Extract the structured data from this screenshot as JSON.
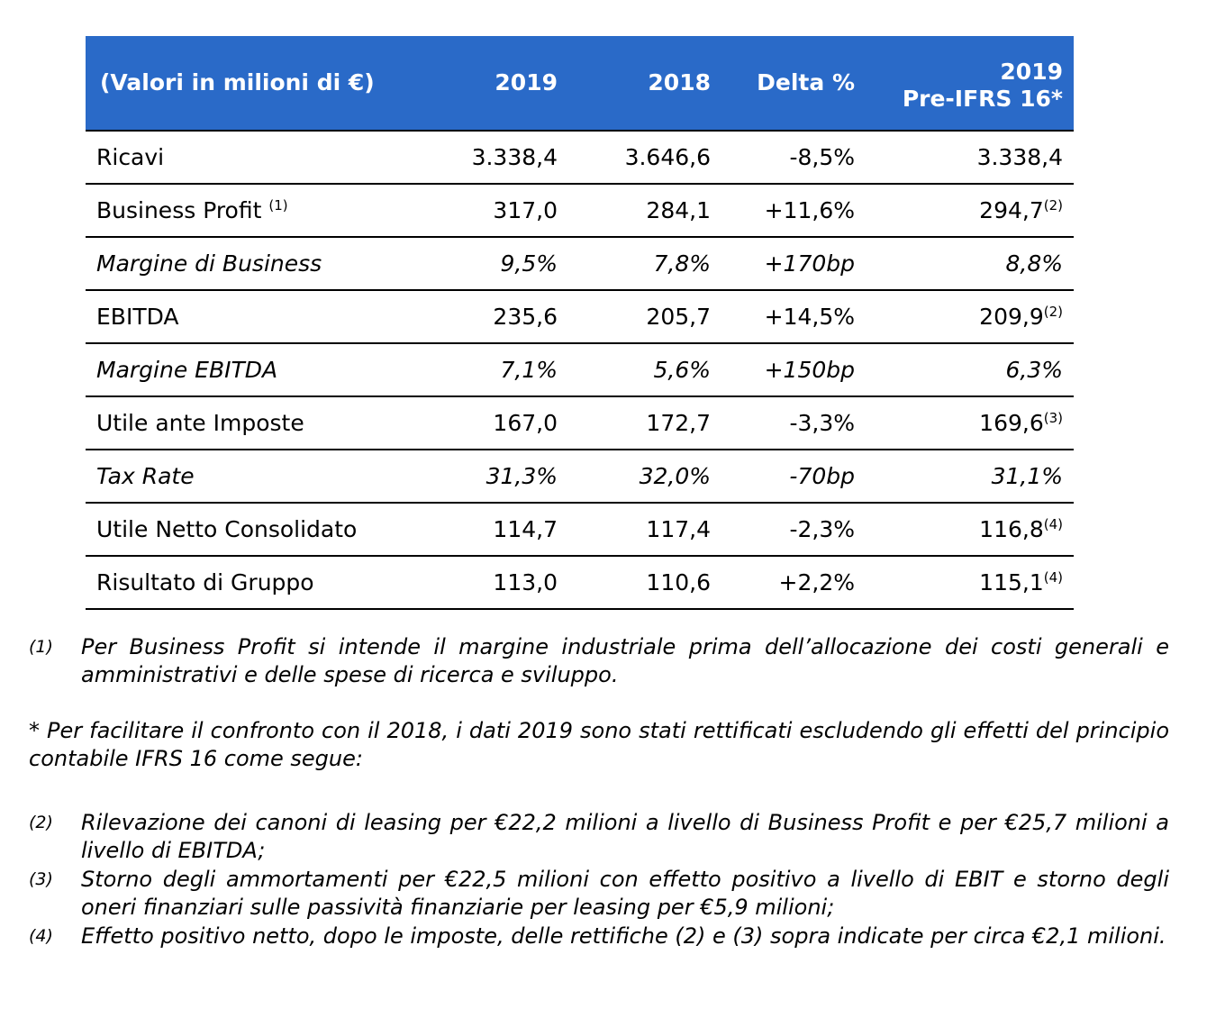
{
  "table": {
    "headers": {
      "label": "(Valori in milioni di €)",
      "c2019": "2019",
      "c2018": "2018",
      "delta": "Delta %",
      "pre_line1": "2019",
      "pre_line2": "Pre-IFRS 16*"
    },
    "rows": [
      {
        "label": "Ricavi",
        "label_sup": "",
        "v2019": "3.338,4",
        "v2018": "3.646,6",
        "delta": "-8,5%",
        "pre": "3.338,4",
        "pre_sup": "",
        "italic": false
      },
      {
        "label": "Business Profit",
        "label_sup": "(1)",
        "v2019": "317,0",
        "v2018": "284,1",
        "delta": "+11,6%",
        "pre": "294,7",
        "pre_sup": "(2)",
        "italic": false
      },
      {
        "label": "Margine di Business",
        "label_sup": "",
        "v2019": "9,5%",
        "v2018": "7,8%",
        "delta": "+170bp",
        "pre": "8,8%",
        "pre_sup": "",
        "italic": true
      },
      {
        "label": "EBITDA",
        "label_sup": "",
        "v2019": "235,6",
        "v2018": "205,7",
        "delta": "+14,5%",
        "pre": "209,9",
        "pre_sup": "(2)",
        "italic": false
      },
      {
        "label": "Margine EBITDA",
        "label_sup": "",
        "v2019": "7,1%",
        "v2018": "5,6%",
        "delta": "+150bp",
        "pre": "6,3%",
        "pre_sup": "",
        "italic": true
      },
      {
        "label": "Utile ante Imposte",
        "label_sup": "",
        "v2019": "167,0",
        "v2018": "172,7",
        "delta": "-3,3%",
        "pre": "169,6",
        "pre_sup": "(3)",
        "italic": false
      },
      {
        "label": "Tax Rate",
        "label_sup": "",
        "v2019": "31,3%",
        "v2018": "32,0%",
        "delta": "-70bp",
        "pre": "31,1%",
        "pre_sup": "",
        "italic": true
      },
      {
        "label": "Utile Netto Consolidato",
        "label_sup": "",
        "v2019": "114,7",
        "v2018": "117,4",
        "delta": "-2,3%",
        "pre": "116,8",
        "pre_sup": "(4)",
        "italic": false
      },
      {
        "label": "Risultato di Gruppo",
        "label_sup": "",
        "v2019": "113,0",
        "v2018": "110,6",
        "delta": "+2,2%",
        "pre": "115,1",
        "pre_sup": "(4)",
        "italic": false
      }
    ]
  },
  "notes": {
    "note1": {
      "mark": "(1)",
      "text": "Per Business Profit si intende il margine industriale prima dell’allocazione dei costi generali e amministrativi e delle spese di ricerca e sviluppo."
    },
    "star": "* Per facilitare il confronto con il 2018, i dati 2019 sono stati rettificati escludendo gli effetti del principio contabile IFRS 16 come segue:",
    "adjustments": [
      {
        "mark": "(2)",
        "text": "Rilevazione dei canoni di leasing per €22,2 milioni a livello di Business Profit e per €25,7 milioni a livello di EBITDA;"
      },
      {
        "mark": "(3)",
        "text": "Storno degli ammortamenti per €22,5 milioni con effetto positivo a livello di EBIT e storno degli oneri finanziari sulle passività finanziarie per leasing per €5,9 milioni;"
      },
      {
        "mark": "(4)",
        "text": "Effetto positivo netto, dopo le imposte, delle rettifiche (2) e (3) sopra indicate per circa €2,1 milioni."
      }
    ]
  },
  "colors": {
    "header_bg": "#2a6ac8",
    "header_text": "#ffffff",
    "rule": "#000000"
  }
}
